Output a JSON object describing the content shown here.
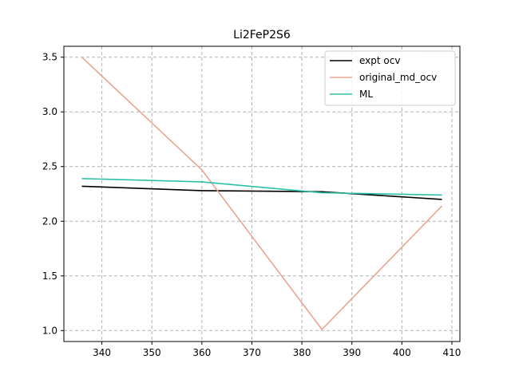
{
  "chart_data": {
    "type": "line",
    "title": "Li2FeP2S6",
    "xlabel": "",
    "ylabel": "",
    "xlim": [
      332.4,
      411.6
    ],
    "ylim": [
      0.9,
      3.6
    ],
    "xticks": [
      340,
      350,
      360,
      370,
      380,
      390,
      400,
      410
    ],
    "yticks": [
      1.0,
      1.5,
      2.0,
      2.5,
      3.0,
      3.5
    ],
    "grid": true,
    "legend_position": "top-right",
    "series": [
      {
        "name": "expt ocv",
        "color": "#000000",
        "x": [
          336,
          360,
          384,
          408
        ],
        "y": [
          2.32,
          2.28,
          2.27,
          2.2
        ]
      },
      {
        "name": "original_md_ocv",
        "color": "#e8a590",
        "x": [
          336,
          360,
          384,
          408
        ],
        "y": [
          3.5,
          2.47,
          1.01,
          2.14
        ]
      },
      {
        "name": "ML",
        "color": "#2bbfa8",
        "x": [
          336,
          360,
          384,
          408
        ],
        "y": [
          2.39,
          2.36,
          2.26,
          2.24
        ]
      }
    ]
  }
}
